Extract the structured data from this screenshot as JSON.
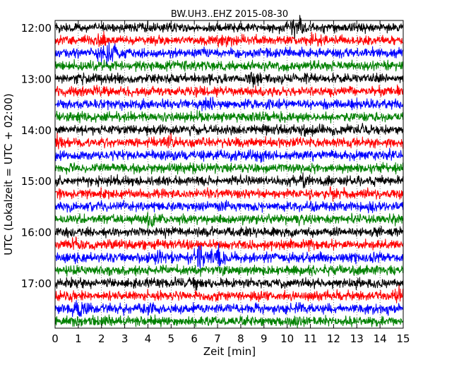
{
  "chart_data": {
    "type": "line",
    "title": "BW.UH3..EHZ 2015-08-30",
    "xlabel": "Zeit  [min]",
    "ylabel": "UTC (Lokalzeit = UTC + 02:00)",
    "xlim": [
      0,
      15
    ],
    "x_ticks": [
      "0",
      "1",
      "2",
      "3",
      "4",
      "5",
      "6",
      "7",
      "8",
      "9",
      "10",
      "11",
      "12",
      "13",
      "14",
      "15"
    ],
    "y_tick_labels": [
      "12:00",
      "13:00",
      "14:00",
      "15:00",
      "16:00",
      "17:00"
    ],
    "trace_start": "12:00",
    "trace_end": "17:45",
    "trace_interval_min": 15,
    "trace_colors": [
      "#000000",
      "#ff0000",
      "#0000ff",
      "#008000"
    ],
    "grid": "vertical dotted at minor ticks",
    "events": [
      {
        "trace": 0,
        "minute": 10.4,
        "amp": 2.0
      },
      {
        "trace": 1,
        "minute": 2.0,
        "amp": 1.5
      },
      {
        "trace": 1,
        "minute": 7.3,
        "amp": 1.4
      },
      {
        "trace": 1,
        "minute": 11.2,
        "amp": 1.4
      },
      {
        "trace": 2,
        "minute": 1.9,
        "amp": 1.8
      },
      {
        "trace": 2,
        "minute": 2.4,
        "amp": 2.0
      },
      {
        "trace": 4,
        "minute": 8.6,
        "amp": 1.6
      },
      {
        "trace": 5,
        "minute": 2.0,
        "amp": 1.3
      },
      {
        "trace": 6,
        "minute": 6.6,
        "amp": 1.3
      },
      {
        "trace": 6,
        "minute": 9.5,
        "amp": 1.2
      },
      {
        "trace": 8,
        "minute": 10.8,
        "amp": 1.3
      },
      {
        "trace": 9,
        "minute": 0.0,
        "amp": 1.5
      },
      {
        "trace": 9,
        "minute": 5.0,
        "amp": 1.5
      },
      {
        "trace": 10,
        "minute": 8.8,
        "amp": 1.4
      },
      {
        "trace": 12,
        "minute": 10.8,
        "amp": 1.6
      },
      {
        "trace": 13,
        "minute": 12.1,
        "amp": 1.3
      },
      {
        "trace": 15,
        "minute": 4.1,
        "amp": 1.6
      },
      {
        "trace": 17,
        "minute": 1.0,
        "amp": 1.4
      },
      {
        "trace": 18,
        "minute": 4.5,
        "amp": 1.6
      },
      {
        "trace": 18,
        "minute": 6.2,
        "amp": 2.6
      },
      {
        "trace": 18,
        "minute": 7.0,
        "amp": 2.2
      },
      {
        "trace": 20,
        "minute": 6.0,
        "amp": 1.6
      },
      {
        "trace": 21,
        "minute": 14.9,
        "amp": 1.5
      },
      {
        "trace": 22,
        "minute": 1.0,
        "amp": 1.9
      },
      {
        "trace": 22,
        "minute": 4.1,
        "amp": 1.4
      },
      {
        "trace": 23,
        "minute": 1.8,
        "amp": 1.3
      },
      {
        "trace": 23,
        "minute": 10.3,
        "amp": 1.3
      }
    ]
  }
}
